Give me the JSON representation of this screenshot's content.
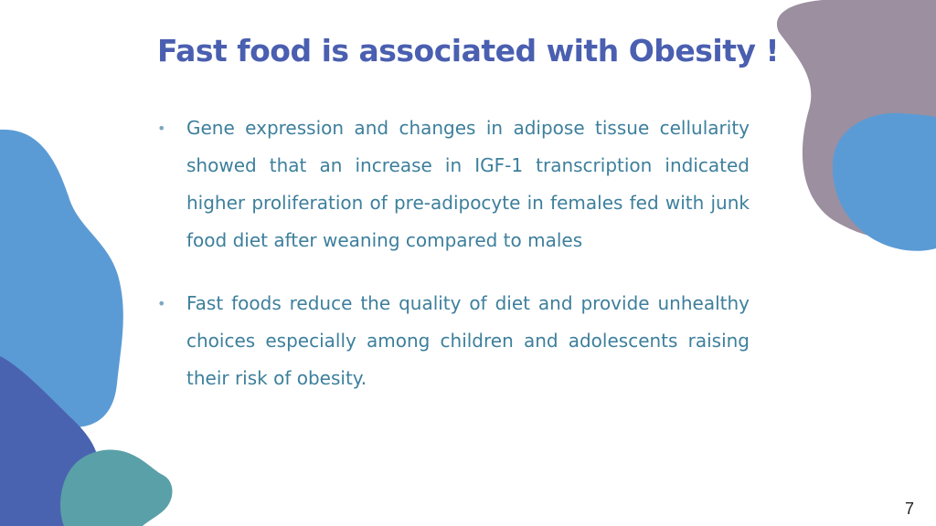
{
  "slide": {
    "title": "Fast food  is associated with Obesity !",
    "bullets": [
      "Gene expression and changes in adipose tissue cellularity showed that an increase in IGF-1 transcription indicated higher proliferation of pre-adipocyte in females fed with junk food diet after weaning compared to males",
      "Fast foods reduce the quality of diet and provide unhealthy choices especially among children and adolescents raising their risk of obesity."
    ],
    "bullet_marker": "•",
    "page_number": "7"
  },
  "colors": {
    "title": "#4a5fb0",
    "body_text": "#3d7f9c",
    "blob_light_blue": "#5b9bd5",
    "blob_dark_blue": "#4a63b0",
    "blob_teal": "#5aa0a8",
    "blob_mauve": "#9b8fa0",
    "blob_right_blue": "#5b9bd5"
  }
}
